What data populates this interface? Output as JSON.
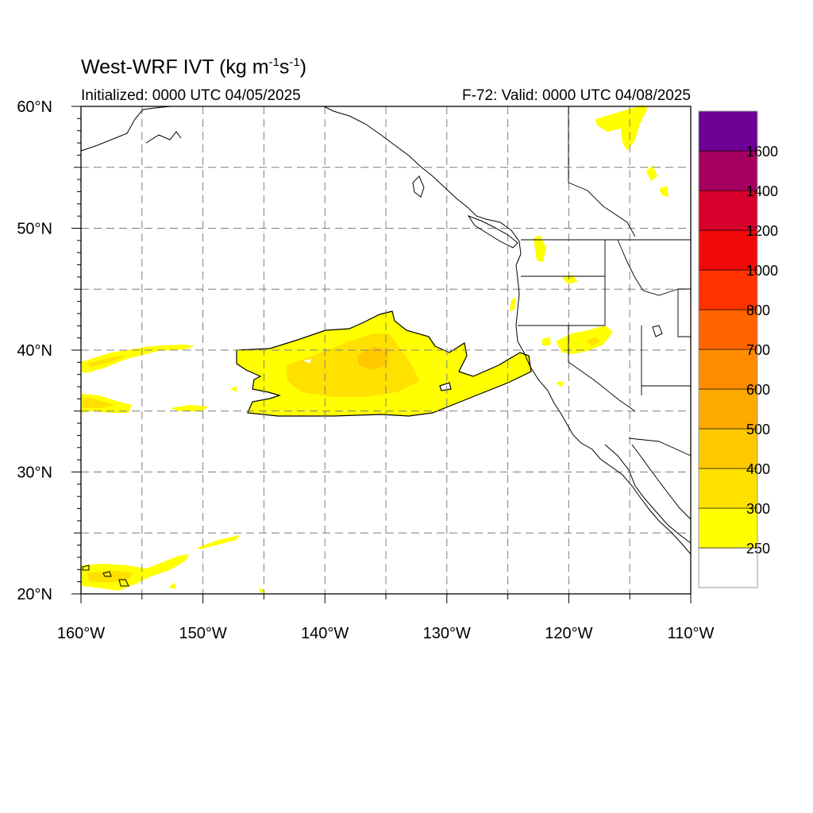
{
  "title": {
    "main": "West-WRF IVT (kg m",
    "exp1": "-1",
    "mid": "s",
    "exp2": "-1",
    "close": ")"
  },
  "subtitle_left": "Initialized: 0000 UTC 04/05/2025",
  "subtitle_right": "F-72: Valid: 0000 UTC 04/08/2025",
  "map": {
    "lon_range": [
      -160,
      -110
    ],
    "lat_range": [
      20,
      60
    ],
    "lon_ticks": [
      {
        "value": -160,
        "label": "160°W"
      },
      {
        "value": -150,
        "label": "150°W"
      },
      {
        "value": -140,
        "label": "140°W"
      },
      {
        "value": -130,
        "label": "130°W"
      },
      {
        "value": -120,
        "label": "120°W"
      },
      {
        "value": -110,
        "label": "110°W"
      }
    ],
    "lat_ticks": [
      {
        "value": 20,
        "label": "20°N"
      },
      {
        "value": 30,
        "label": "30°N"
      },
      {
        "value": 40,
        "label": "40°N"
      },
      {
        "value": 50,
        "label": "50°N"
      },
      {
        "value": 60,
        "label": "60°N"
      }
    ],
    "gridlines": "dashed every 5 degrees"
  },
  "colorbar": {
    "levels": [
      {
        "label": "",
        "color": "#ffffff"
      },
      {
        "label": "250",
        "color": "#ffff00"
      },
      {
        "label": "300",
        "color": "#ffe100"
      },
      {
        "label": "400",
        "color": "#ffc800"
      },
      {
        "label": "500",
        "color": "#ffaa00"
      },
      {
        "label": "600",
        "color": "#ff8c00"
      },
      {
        "label": "700",
        "color": "#ff6400"
      },
      {
        "label": "800",
        "color": "#ff3200"
      },
      {
        "label": "1000",
        "color": "#f00a0a"
      },
      {
        "label": "1200",
        "color": "#d7002d"
      },
      {
        "label": "1400",
        "color": "#a5005f"
      },
      {
        "label": "1600",
        "color": "#6e0096"
      }
    ]
  }
}
